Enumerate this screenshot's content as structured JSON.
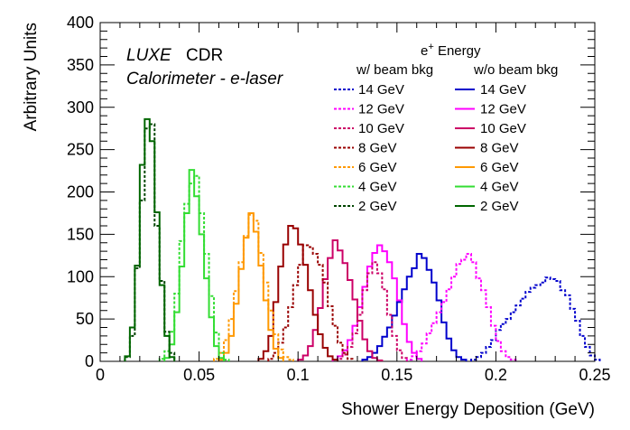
{
  "chart_data": {
    "type": "line",
    "xlabel": "Shower Energy Deposition (GeV)",
    "ylabel": "Arbitrary Units",
    "xlim": [
      0,
      0.25
    ],
    "ylim": [
      0,
      400
    ],
    "bin_width": 0.0025,
    "x_ticks": [
      "0",
      "0.05",
      "0.1",
      "0.15",
      "0.2",
      "0.25"
    ],
    "y_ticks": [
      "0",
      "50",
      "100",
      "150",
      "200",
      "250",
      "300",
      "350",
      "400"
    ],
    "annotations": {
      "luxe": "LUXE",
      "cdr": "CDR",
      "subtitle": "Calorimeter - e-laser"
    },
    "legend": {
      "header_prefix": "e",
      "header_superscript": "+",
      "header_suffix": " Energy",
      "col_with": "w/ beam bkg",
      "col_without": "w/o beam bkg"
    },
    "series": [
      {
        "name": "14 GeV",
        "style": "dashed",
        "color": "#0000cc",
        "x0": 0.1875,
        "values": [
          2,
          5,
          10,
          17,
          25,
          37,
          44,
          50,
          58,
          66,
          74,
          82,
          87,
          90,
          93,
          99,
          97,
          95,
          84,
          78,
          62,
          48,
          30,
          17,
          7,
          2
        ]
      },
      {
        "name": "14 GeV",
        "style": "solid",
        "color": "#0000cc",
        "x0": 0.1325,
        "values": [
          2,
          5,
          10,
          18,
          29,
          40,
          54,
          70,
          85,
          100,
          110,
          127,
          122,
          108,
          93,
          72,
          46,
          27,
          13,
          5,
          2
        ]
      },
      {
        "name": "12 GeV",
        "style": "dashed",
        "color": "#ff00ff",
        "x0": 0.155,
        "values": [
          2,
          6,
          12,
          21,
          33,
          45,
          58,
          70,
          85,
          100,
          115,
          120,
          127,
          117,
          98,
          84,
          64,
          42,
          24,
          12,
          5,
          2
        ]
      },
      {
        "name": "12 GeV",
        "style": "solid",
        "color": "#ff00ff",
        "x0": 0.1175,
        "values": [
          2,
          6,
          13,
          25,
          42,
          64,
          88,
          112,
          128,
          137,
          130,
          117,
          98,
          72,
          44,
          23,
          10,
          3
        ]
      },
      {
        "name": "10 GeV",
        "style": "dashed",
        "color": "#cc0066",
        "x0": 0.12,
        "values": [
          3,
          8,
          17,
          33,
          55,
          84,
          104,
          117,
          104,
          85,
          55,
          30,
          13,
          4
        ]
      },
      {
        "name": "10 GeV",
        "style": "solid",
        "color": "#cc0066",
        "x0": 0.1,
        "values": [
          2,
          7,
          18,
          37,
          63,
          97,
          122,
          143,
          131,
          116,
          96,
          73,
          48,
          26,
          12,
          4,
          1
        ]
      },
      {
        "name": "8 GeV",
        "style": "dashed",
        "color": "#990000",
        "x0": 0.085,
        "values": [
          3,
          10,
          22,
          40,
          64,
          90,
          114,
          137,
          135,
          127,
          114,
          93,
          65,
          42,
          22,
          10,
          3
        ]
      },
      {
        "name": "8 GeV",
        "style": "solid",
        "color": "#990000",
        "x0": 0.08,
        "values": [
          3,
          12,
          30,
          70,
          112,
          138,
          160,
          157,
          138,
          114,
          84,
          55,
          32,
          16,
          6,
          2
        ]
      },
      {
        "name": "6 GeV",
        "style": "dashed",
        "color": "#ff9900",
        "x0": 0.0575,
        "values": [
          3,
          10,
          25,
          50,
          83,
          117,
          148,
          173,
          166,
          128,
          93,
          60,
          32,
          14,
          5,
          2
        ]
      },
      {
        "name": "6 GeV",
        "style": "solid",
        "color": "#ff9900",
        "x0": 0.06,
        "values": [
          2,
          10,
          30,
          68,
          109,
          146,
          175,
          153,
          113,
          72,
          37,
          15,
          4
        ]
      },
      {
        "name": "4 GeV",
        "style": "dashed",
        "color": "#33dd33",
        "x0": 0.03,
        "values": [
          3,
          12,
          35,
          80,
          142,
          186,
          210,
          219,
          175,
          127,
          77,
          34,
          10,
          2
        ]
      },
      {
        "name": "4 GeV",
        "style": "solid",
        "color": "#33dd33",
        "x0": 0.0325,
        "values": [
          4,
          20,
          58,
          112,
          175,
          226,
          195,
          150,
          98,
          52,
          18,
          4
        ]
      },
      {
        "name": "2 GeV",
        "style": "dashed",
        "color": "#004400",
        "x0": 0.0125,
        "values": [
          5,
          30,
          110,
          190,
          275,
          280,
          160,
          95,
          35,
          10
        ]
      },
      {
        "name": "2 GeV",
        "style": "solid",
        "color": "#006600",
        "x0": 0.0125,
        "values": [
          6,
          40,
          113,
          232,
          286,
          260,
          176,
          90,
          30,
          5
        ]
      }
    ]
  }
}
